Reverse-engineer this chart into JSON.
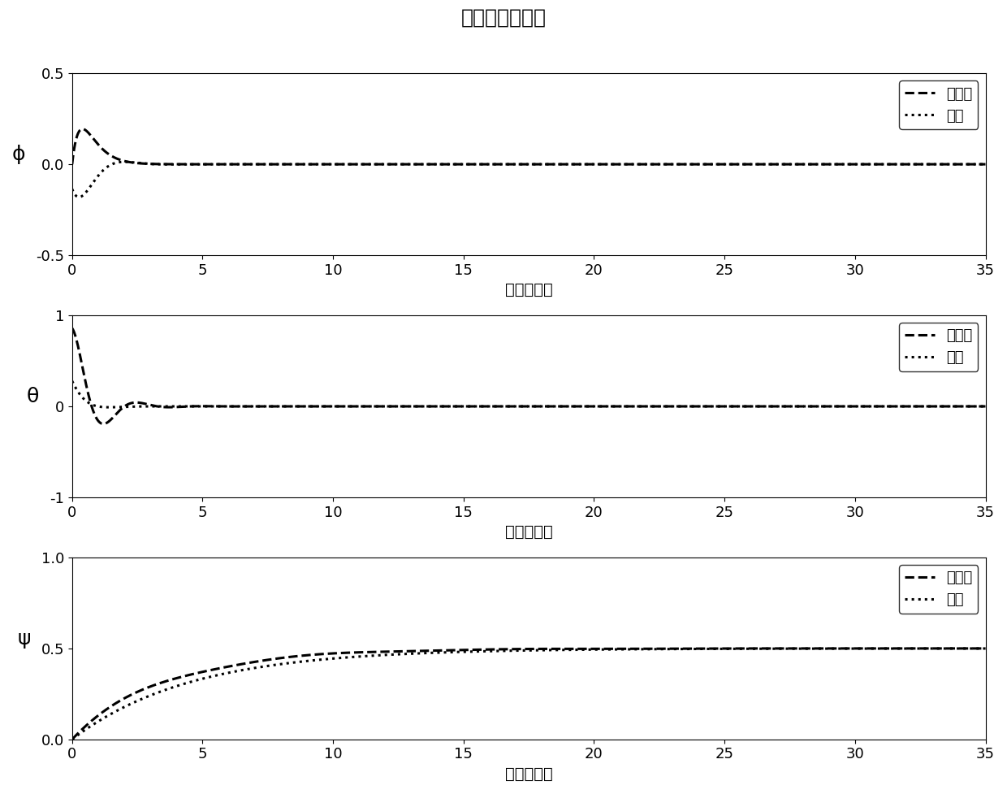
{
  "title": "欧拉角跟踪效果",
  "xlabel": "时间（秒）",
  "xlim": [
    0,
    35
  ],
  "subplots": [
    {
      "ylabel": "ϕ",
      "ylim": [
        -0.5,
        0.5
      ],
      "yticks": [
        -0.5,
        0,
        0.5
      ],
      "legend": [
        "增强型",
        "传统"
      ]
    },
    {
      "ylabel": "θ",
      "ylim": [
        -1,
        1
      ],
      "yticks": [
        -1,
        0,
        1
      ],
      "legend": [
        "增强型",
        "传统"
      ]
    },
    {
      "ylabel": "ψ",
      "ylim": [
        0,
        1
      ],
      "yticks": [
        0,
        0.5,
        1
      ],
      "legend": [
        "增强型",
        "传统"
      ]
    }
  ],
  "line_color": "#000000",
  "background_color": "#ffffff",
  "font_size": 14,
  "title_font_size": 18
}
